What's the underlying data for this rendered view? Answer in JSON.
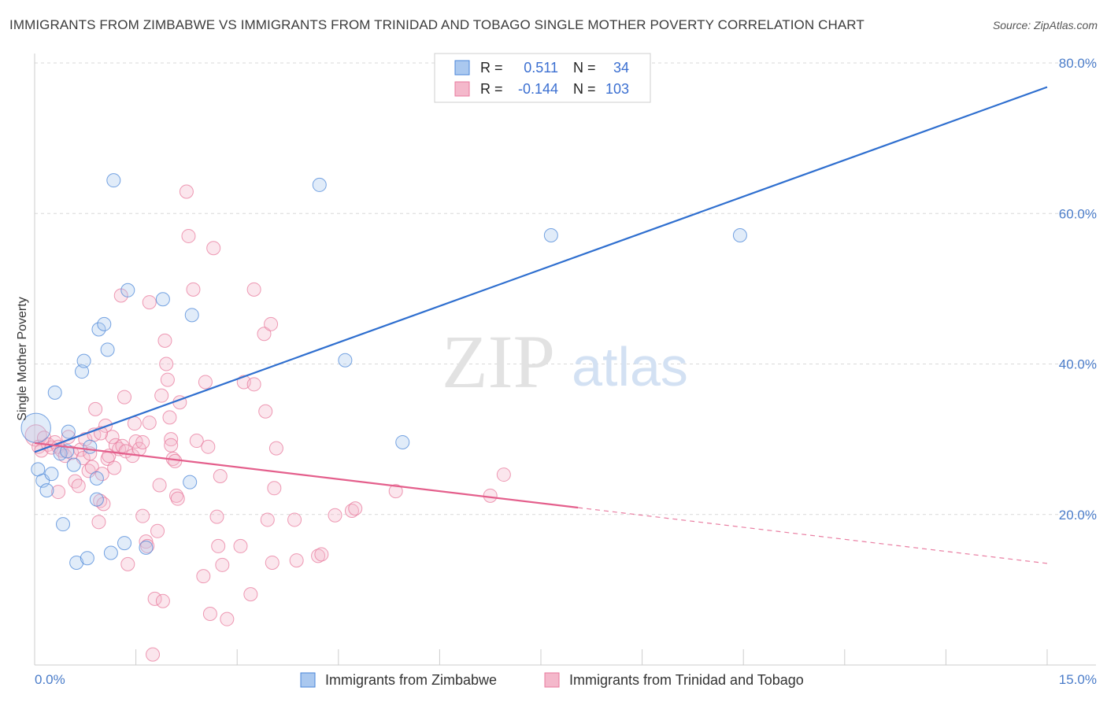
{
  "title": "IMMIGRANTS FROM ZIMBABWE VS IMMIGRANTS FROM TRINIDAD AND TOBAGO SINGLE MOTHER POVERTY CORRELATION CHART",
  "source": "Source: ZipAtlas.com",
  "watermark": {
    "zip": "ZIP",
    "atlas": "atlas"
  },
  "colors": {
    "blue": "#4a86d8",
    "blue_fill": "#aac8ef",
    "blue_line": "#2f6fcf",
    "pink": "#e8799c",
    "pink_fill": "#f4b8cb",
    "pink_line": "#e45f8c",
    "grid": "#d9d9d9",
    "axis_text": "#4a7cc9"
  },
  "stats": {
    "r_label": "R =",
    "n_label": "N =",
    "rows": [
      {
        "series": "blue",
        "r": "0.511",
        "n": "34"
      },
      {
        "series": "pink",
        "r": "-0.144",
        "n": "103"
      }
    ]
  },
  "chart_data": {
    "type": "scatter",
    "xlabel": "",
    "ylabel": "Single Mother Poverty",
    "xlim": [
      0,
      15
    ],
    "ylim": [
      0,
      80
    ],
    "x_tick_labels": [
      {
        "value": 0,
        "label": "0.0%"
      },
      {
        "value": 15,
        "label": "15.0%"
      }
    ],
    "y_tick_labels": [
      {
        "value": 20,
        "label": "20.0%"
      },
      {
        "value": 40,
        "label": "40.0%"
      },
      {
        "value": 60,
        "label": "60.0%"
      },
      {
        "value": 80,
        "label": "80.0%"
      }
    ],
    "x_minor_ticks": [
      0,
      1.5,
      3,
      4.5,
      6,
      7.5,
      9,
      10.5,
      12,
      13.5,
      15
    ],
    "grid": true,
    "legend_position": "bottom",
    "series": [
      {
        "name": "Immigrants from Zimbabwe",
        "color": "blue",
        "trend": {
          "x0": 0,
          "y0": 28.3,
          "x1": 15,
          "y1": 76.8,
          "solid_until": 15
        },
        "points": [
          [
            0.02,
            31.5,
            2.2
          ],
          [
            0.05,
            26.0,
            1
          ],
          [
            0.12,
            24.5,
            1
          ],
          [
            0.18,
            23.2,
            1
          ],
          [
            0.25,
            25.4,
            1
          ],
          [
            0.3,
            36.2,
            1
          ],
          [
            0.38,
            28.1,
            1
          ],
          [
            0.42,
            18.7,
            1
          ],
          [
            0.5,
            31.0,
            1
          ],
          [
            0.58,
            26.6,
            1
          ],
          [
            0.62,
            13.6,
            1
          ],
          [
            0.78,
            14.2,
            1
          ],
          [
            0.7,
            39.0,
            1
          ],
          [
            0.73,
            40.4,
            1
          ],
          [
            0.82,
            29.0,
            1
          ],
          [
            0.92,
            24.8,
            1
          ],
          [
            0.92,
            22.0,
            1
          ],
          [
            0.95,
            44.6,
            1
          ],
          [
            1.03,
            45.3,
            1
          ],
          [
            1.08,
            41.9,
            1
          ],
          [
            1.13,
            14.9,
            1
          ],
          [
            1.17,
            64.4,
            1
          ],
          [
            1.33,
            16.2,
            1
          ],
          [
            1.38,
            49.8,
            1
          ],
          [
            1.65,
            15.6,
            1
          ],
          [
            1.9,
            48.6,
            1
          ],
          [
            2.3,
            24.3,
            1
          ],
          [
            2.33,
            46.5,
            1
          ],
          [
            4.22,
            63.8,
            1
          ],
          [
            4.6,
            40.5,
            1
          ],
          [
            5.45,
            29.6,
            1
          ],
          [
            7.65,
            57.1,
            1
          ],
          [
            10.45,
            57.1,
            1
          ],
          [
            0.48,
            28.4,
            1
          ]
        ]
      },
      {
        "name": "Immigrants from Trinidad and Tobago",
        "color": "pink",
        "trend": {
          "x0": 0,
          "y0": 29.5,
          "x1": 15,
          "y1": 13.5,
          "solid_until": 8.05
        },
        "points": [
          [
            0.02,
            30.5,
            1.6
          ],
          [
            0.06,
            29.0,
            1
          ],
          [
            0.1,
            28.5,
            1
          ],
          [
            0.14,
            30.2,
            1
          ],
          [
            0.2,
            29.3,
            1
          ],
          [
            0.25,
            28.9,
            1
          ],
          [
            0.3,
            29.6,
            1
          ],
          [
            0.35,
            29.0,
            1
          ],
          [
            0.4,
            28.5,
            1
          ],
          [
            0.45,
            27.8,
            1
          ],
          [
            0.35,
            23.0,
            1
          ],
          [
            0.5,
            30.3,
            1
          ],
          [
            0.55,
            28.2,
            1
          ],
          [
            0.6,
            24.4,
            1
          ],
          [
            0.65,
            23.8,
            1
          ],
          [
            0.68,
            28.6,
            1
          ],
          [
            0.72,
            27.5,
            1
          ],
          [
            0.75,
            30.0,
            1
          ],
          [
            0.8,
            25.8,
            1
          ],
          [
            0.82,
            28.1,
            1
          ],
          [
            0.85,
            26.3,
            1
          ],
          [
            0.88,
            30.6,
            1
          ],
          [
            0.9,
            34.0,
            1
          ],
          [
            0.95,
            19.0,
            1
          ],
          [
            0.97,
            21.8,
            1
          ],
          [
            1.0,
            25.4,
            1
          ],
          [
            1.02,
            21.4,
            1
          ],
          [
            1.05,
            31.8,
            1
          ],
          [
            1.08,
            27.4,
            1
          ],
          [
            1.1,
            27.8,
            1
          ],
          [
            1.15,
            30.3,
            1
          ],
          [
            1.18,
            26.2,
            1
          ],
          [
            1.2,
            29.2,
            1
          ],
          [
            1.25,
            28.7,
            1
          ],
          [
            1.3,
            29.1,
            1
          ],
          [
            1.33,
            35.6,
            1
          ],
          [
            1.35,
            28.4,
            1
          ],
          [
            1.38,
            13.4,
            1
          ],
          [
            1.28,
            49.1,
            1
          ],
          [
            1.45,
            27.8,
            1
          ],
          [
            1.48,
            32.1,
            1
          ],
          [
            1.5,
            29.7,
            1
          ],
          [
            1.55,
            28.7,
            1
          ],
          [
            1.6,
            19.8,
            1
          ],
          [
            1.65,
            16.4,
            1
          ],
          [
            1.67,
            15.8,
            1
          ],
          [
            1.7,
            32.2,
            1
          ],
          [
            1.7,
            48.2,
            1
          ],
          [
            1.75,
            1.4,
            1
          ],
          [
            1.78,
            8.8,
            1
          ],
          [
            1.82,
            17.8,
            1
          ],
          [
            1.85,
            23.9,
            1
          ],
          [
            1.88,
            35.8,
            1
          ],
          [
            1.9,
            8.5,
            1
          ],
          [
            1.93,
            43.1,
            1
          ],
          [
            1.95,
            40.0,
            1
          ],
          [
            1.97,
            37.9,
            1
          ],
          [
            2.0,
            32.9,
            1
          ],
          [
            2.02,
            30.0,
            1
          ],
          [
            2.05,
            27.4,
            1
          ],
          [
            2.08,
            27.1,
            1
          ],
          [
            2.1,
            22.5,
            1
          ],
          [
            2.12,
            22.1,
            1
          ],
          [
            2.15,
            34.9,
            1
          ],
          [
            2.25,
            62.9,
            1
          ],
          [
            2.28,
            57.0,
            1
          ],
          [
            2.35,
            49.9,
            1
          ],
          [
            2.4,
            29.8,
            1
          ],
          [
            2.5,
            11.8,
            1
          ],
          [
            2.53,
            37.6,
            1
          ],
          [
            2.57,
            29.0,
            1
          ],
          [
            2.6,
            6.8,
            1
          ],
          [
            2.65,
            55.4,
            1
          ],
          [
            2.7,
            19.7,
            1
          ],
          [
            2.72,
            15.8,
            1
          ],
          [
            2.75,
            25.1,
            1
          ],
          [
            2.78,
            13.3,
            1
          ],
          [
            2.85,
            6.1,
            1
          ],
          [
            3.05,
            15.8,
            1
          ],
          [
            3.1,
            37.6,
            1
          ],
          [
            3.2,
            9.4,
            1
          ],
          [
            3.25,
            49.9,
            1
          ],
          [
            3.25,
            37.3,
            1
          ],
          [
            3.4,
            44.0,
            1
          ],
          [
            3.42,
            33.7,
            1
          ],
          [
            3.45,
            19.3,
            1
          ],
          [
            3.5,
            45.3,
            1
          ],
          [
            3.52,
            13.6,
            1
          ],
          [
            3.55,
            23.5,
            1
          ],
          [
            3.58,
            28.8,
            1
          ],
          [
            3.85,
            19.3,
            1
          ],
          [
            3.88,
            13.9,
            1
          ],
          [
            4.2,
            14.5,
            1
          ],
          [
            4.25,
            14.7,
            1
          ],
          [
            4.45,
            19.9,
            1
          ],
          [
            4.7,
            20.5,
            1
          ],
          [
            4.75,
            20.8,
            1
          ],
          [
            5.35,
            23.1,
            1
          ],
          [
            6.75,
            22.5,
            1
          ],
          [
            6.95,
            25.3,
            1
          ],
          [
            1.6,
            29.6,
            1
          ],
          [
            0.98,
            30.8,
            1
          ],
          [
            2.02,
            29.2,
            1
          ]
        ]
      }
    ]
  }
}
